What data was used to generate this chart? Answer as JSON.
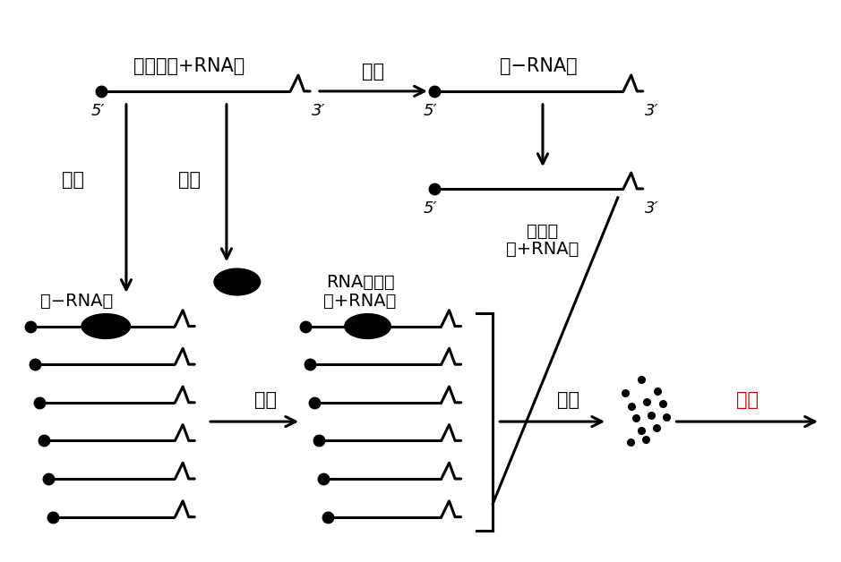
{
  "bg_color": "#ffffff",
  "line_color": "#000000",
  "text_color": "#000000",
  "red_color": "#cc0000",
  "figsize": [
    9.39,
    6.28
  ],
  "dpi": 100,
  "label_jiyinzu_plus": "基因组（+RNA）",
  "label_minus_rna_top": "（−RNA）",
  "label_plus_rna": "（+RNA）",
  "label_fuzhi": "复制",
  "label_fanyi": "翻译",
  "label_rna_fuzhi_mei": "RNA复制酫",
  "label_jiyinzu_plus2_line1": "基因组",
  "label_jiyinzu_plus2_line2": "（+RNA）",
  "label_zuzhuang": "组装",
  "label_5prime": "5′",
  "label_3prime": "3′"
}
